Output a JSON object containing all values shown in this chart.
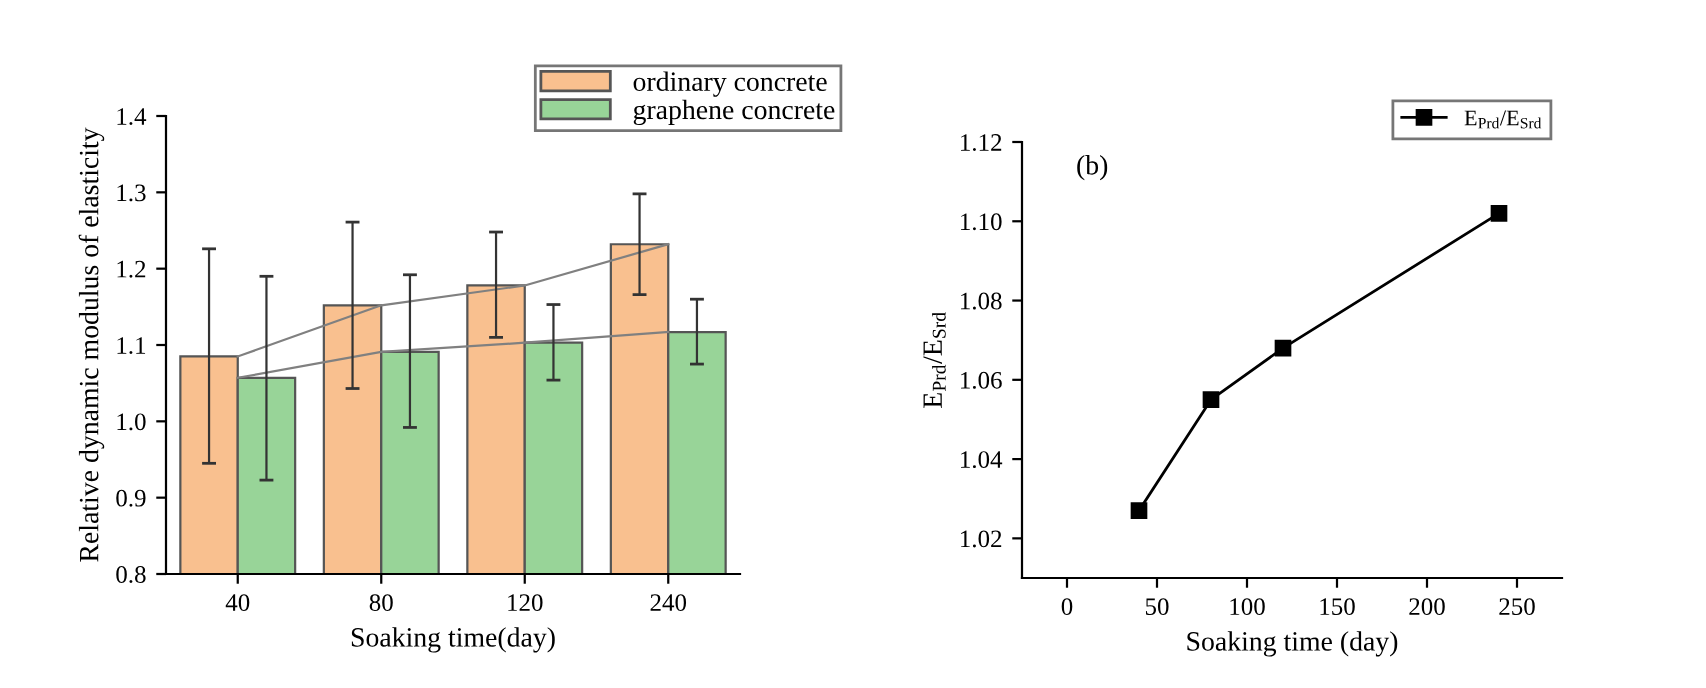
{
  "chart_data": [
    {
      "type": "bar",
      "xlabel": "Soaking time(day)",
      "ylabel": "Relative dynamic modulus of elasticity",
      "categories": [
        "40",
        "80",
        "120",
        "240"
      ],
      "series": [
        {
          "name": "ordinary concrete",
          "color": "#f9c08f",
          "values": [
            1.085,
            1.152,
            1.178,
            1.232
          ],
          "errors": [
            [
              0.945,
              1.226
            ],
            [
              1.043,
              1.261
            ],
            [
              1.11,
              1.248
            ],
            [
              1.166,
              1.298
            ]
          ]
        },
        {
          "name": "graphene concrete",
          "color": "#98d498",
          "values": [
            1.057,
            1.091,
            1.103,
            1.117
          ],
          "errors": [
            [
              0.923,
              1.19
            ],
            [
              0.992,
              1.192
            ],
            [
              1.054,
              1.153
            ],
            [
              1.075,
              1.16
            ]
          ]
        },
        {
          "type": "line",
          "color": "#808080",
          "values": [
            1.085,
            1.152,
            1.178,
            1.232
          ]
        },
        {
          "type": "line",
          "color": "#808080",
          "values": [
            1.057,
            1.091,
            1.103,
            1.117
          ]
        }
      ],
      "ylim": [
        0.8,
        1.4
      ],
      "yticks": [
        0.8,
        0.9,
        {
          "value": 1.0,
          "label": "1.0"
        },
        1.1,
        1.2,
        1.3,
        1.4
      ],
      "legend": "top right"
    },
    {
      "type": "line",
      "xlabel": "Soaking time (day)",
      "ylabel": "E$_{Prd}$/E$_{Srd}$",
      "annotations": [
        "(b)"
      ],
      "marker": "square",
      "series": [
        {
          "name": "E$_{Prd}$/E$_{Srd}$",
          "color": "#000000",
          "x": [
            40,
            80,
            120,
            240
          ],
          "values": [
            1.027,
            1.055,
            1.068,
            1.102
          ]
        }
      ],
      "xlim": [
        -25,
        275
      ],
      "xticks": [
        0,
        50,
        100,
        150,
        200,
        250
      ],
      "ylim": [
        1.01,
        1.12
      ],
      "yticks": [
        1.02,
        1.04,
        1.06,
        1.08,
        {
          "value": 1.1,
          "label": "1.10"
        },
        1.12
      ],
      "legend": "top right"
    }
  ]
}
